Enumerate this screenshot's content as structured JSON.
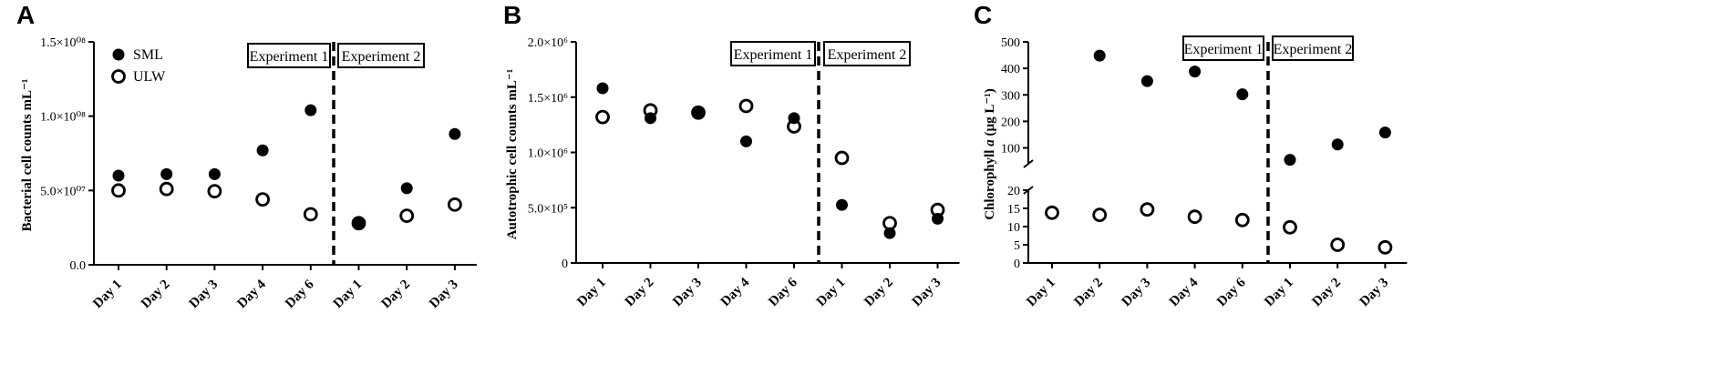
{
  "chart_data": [
    {
      "panel": "A",
      "type": "scatter",
      "ylabel": "Bacterial cell counts mL⁻¹",
      "ylim": [
        0,
        150000000
      ],
      "yticks": [
        0,
        50000000,
        100000000,
        150000000
      ],
      "ytick_labels": [
        "0.0",
        "5.0×10⁰⁷",
        "1.0×10⁰⁸",
        "1.5×10⁰⁸"
      ],
      "categories": [
        "Day 1",
        "Day 2",
        "Day 3",
        "Day 4",
        "Day 6",
        "Day 1",
        "Day 2",
        "Day 3"
      ],
      "divider_after_index": 4,
      "experiments": [
        "Experiment 1",
        "Experiment 2"
      ],
      "legend": {
        "position": "top-left",
        "entries": [
          "SML",
          "ULW"
        ]
      },
      "series": [
        {
          "name": "SML",
          "marker": "filled-circle",
          "values": [
            60000000,
            61000000,
            61000000,
            77000000,
            104000000,
            28000000,
            51500000,
            88000000
          ]
        },
        {
          "name": "ULW",
          "marker": "open-circle",
          "values": [
            50000000,
            51000000,
            49500000,
            44000000,
            34000000,
            28000000,
            33000000,
            40500000
          ]
        }
      ]
    },
    {
      "panel": "B",
      "type": "scatter",
      "ylabel": "Autotrophic cell counts mL⁻¹",
      "ylim": [
        0,
        2000000
      ],
      "yticks": [
        0,
        500000,
        1000000,
        1500000,
        2000000
      ],
      "ytick_labels": [
        "0",
        "5.0×10⁵",
        "1.0×10⁶",
        "1.5×10⁶",
        "2.0×10⁶"
      ],
      "categories": [
        "Day 1",
        "Day 2",
        "Day 3",
        "Day 4",
        "Day 6",
        "Day 1",
        "Day 2",
        "Day 3"
      ],
      "divider_after_index": 4,
      "experiments": [
        "Experiment 1",
        "Experiment 2"
      ],
      "series": [
        {
          "name": "SML",
          "marker": "filled-circle",
          "values": [
            1580000,
            1310000,
            1360000,
            1100000,
            1310000,
            525000,
            270000,
            400000
          ]
        },
        {
          "name": "ULW",
          "marker": "open-circle",
          "values": [
            1320000,
            1380000,
            1360000,
            1420000,
            1235000,
            950000,
            360000,
            480000
          ]
        }
      ]
    },
    {
      "panel": "C",
      "type": "scatter",
      "ylabel": "Chlorophyll a (µg L⁻¹)",
      "ylabel_parts": [
        "Chlorophyll ",
        "a",
        " (µg L⁻¹)"
      ],
      "broken_axis": true,
      "ylim_lower": [
        0,
        20
      ],
      "ylim_upper": [
        40,
        500
      ],
      "yticks_lower": [
        0,
        5,
        10,
        15,
        20
      ],
      "yticks_upper": [
        100,
        200,
        300,
        400,
        500
      ],
      "ytick_labels_lower": [
        "0",
        "5",
        "10",
        "15",
        "20"
      ],
      "ytick_labels_upper": [
        "100",
        "200",
        "300",
        "400",
        "500"
      ],
      "categories": [
        "Day 1",
        "Day 2",
        "Day 3",
        "Day 4",
        "Day 6",
        "Day 1",
        "Day 2",
        "Day 3"
      ],
      "divider_after_index": 4,
      "experiments": [
        "Experiment 1",
        "Experiment 2"
      ],
      "series": [
        {
          "name": "SML",
          "marker": "filled-circle",
          "values": [
            null,
            448,
            352,
            388,
            302,
            55,
            113,
            158
          ]
        },
        {
          "name": "ULW",
          "marker": "open-circle",
          "values": [
            13.8,
            13.2,
            14.7,
            12.7,
            11.8,
            9.8,
            5.0,
            4.3
          ]
        }
      ]
    }
  ]
}
